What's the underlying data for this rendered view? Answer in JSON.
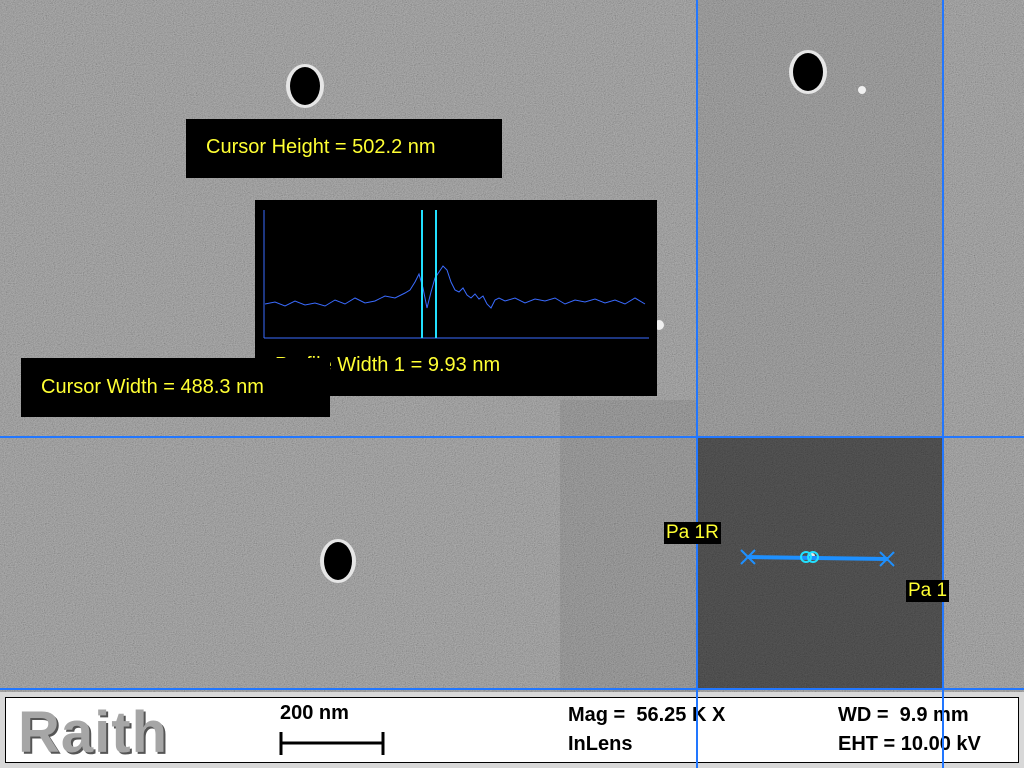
{
  "measurements": {
    "cursor_height": "Cursor Height = 502.2 nm",
    "cursor_width": "Cursor Width = 488.3 nm",
    "profile_width": "Profile Width 1 = 9.93 nm"
  },
  "markers": {
    "pa1r": "Pa 1R",
    "pa1": "Pa 1"
  },
  "infobar": {
    "logo": "Raith",
    "scale_bar_label": "200 nm",
    "mag": "Mag =  56.25 K X",
    "detector": "InLens",
    "wd": "WD =  9.9 mm",
    "eht": "EHT = 10.00 kV"
  },
  "colors": {
    "cursor": "#2277ff",
    "label_text": "#ffff33",
    "profile_line": "#3a6bff",
    "profile_markers": "#22e0ff"
  },
  "icons": {
    "scale_bar": "scale-bar-icon",
    "measurement_marker": "measure-line-icon"
  }
}
